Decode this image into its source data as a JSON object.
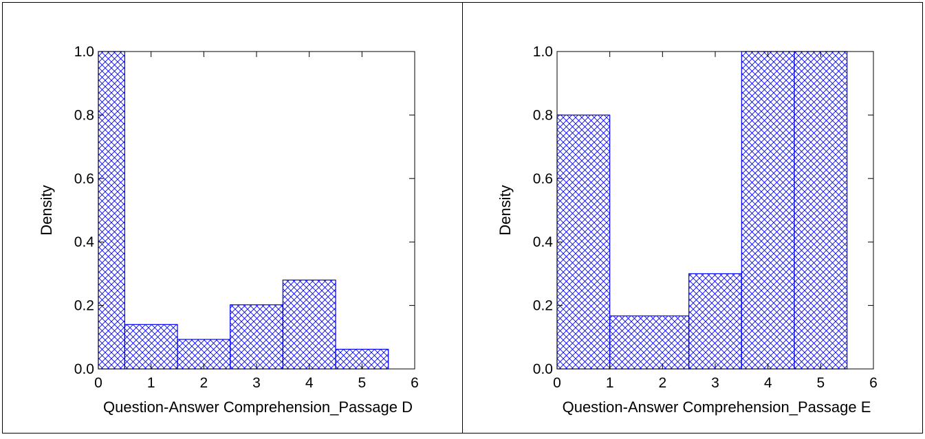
{
  "style": {
    "bar_stroke": "#0000ff",
    "hatch_color": "#0000ff",
    "axis_color": "#000000",
    "panel_border": "#000000",
    "background": "#ffffff"
  },
  "chart_data": [
    {
      "type": "bar",
      "title": "",
      "xlabel": "Question-Answer Comprehension_Passage D",
      "ylabel": "Density",
      "xlim": [
        0,
        6
      ],
      "ylim": [
        0,
        1
      ],
      "xticks": [
        0,
        1,
        2,
        3,
        4,
        5,
        6
      ],
      "xtick_labels": [
        "0",
        "1",
        "2",
        "3",
        "4",
        "5",
        "6"
      ],
      "yticks": [
        0,
        0.2,
        0.4,
        0.6,
        0.8,
        1
      ],
      "ytick_labels": [
        "0.0",
        "0.2",
        "0.4",
        "0.6",
        "0.8",
        "1.0"
      ],
      "grid": false,
      "fill": "crosshatch",
      "bins": [
        {
          "x0": 0,
          "x1": 0.5,
          "value": 1.0
        },
        {
          "x0": 0.5,
          "x1": 1.5,
          "value": 0.14
        },
        {
          "x0": 1.5,
          "x1": 2.5,
          "value": 0.093
        },
        {
          "x0": 2.5,
          "x1": 3.5,
          "value": 0.202
        },
        {
          "x0": 3.5,
          "x1": 4.5,
          "value": 0.28
        },
        {
          "x0": 4.5,
          "x1": 5.5,
          "value": 0.062
        }
      ]
    },
    {
      "type": "bar",
      "title": "",
      "xlabel": "Question-Answer Comprehension_Passage E",
      "ylabel": "Density",
      "xlim": [
        0,
        6
      ],
      "ylim": [
        0,
        1
      ],
      "xticks": [
        0,
        1,
        2,
        3,
        4,
        5,
        6
      ],
      "xtick_labels": [
        "0",
        "1",
        "2",
        "3",
        "4",
        "5",
        "6"
      ],
      "yticks": [
        0,
        0.2,
        0.4,
        0.6,
        0.8,
        1
      ],
      "ytick_labels": [
        "0.0",
        "0.2",
        "0.4",
        "0.6",
        "0.8",
        "1.0"
      ],
      "grid": false,
      "fill": "crosshatch",
      "bins": [
        {
          "x0": 0,
          "x1": 1,
          "value": 0.8
        },
        {
          "x0": 1,
          "x1": 2.5,
          "value": 0.167
        },
        {
          "x0": 2.5,
          "x1": 3.5,
          "value": 0.3
        },
        {
          "x0": 3.5,
          "x1": 4.5,
          "value": 1.0
        },
        {
          "x0": 4.5,
          "x1": 5.5,
          "value": 1.0
        }
      ]
    }
  ]
}
